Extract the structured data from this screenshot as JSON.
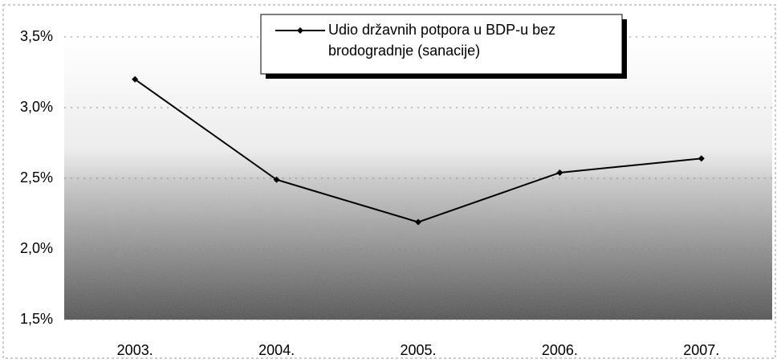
{
  "chart_data": {
    "type": "line",
    "categories": [
      "2003.",
      "2004.",
      "2005.",
      "2006.",
      "2007."
    ],
    "series": [
      {
        "name": "Udio državnih potpora u BDP-u bez brodogradnje (sanacije)",
        "color": "#000000",
        "values": [
          3.2,
          2.49,
          2.19,
          2.54,
          2.64
        ]
      }
    ],
    "ylim": [
      1.5,
      3.5
    ],
    "yticks": [
      {
        "value": 1.5,
        "label": "1,5%"
      },
      {
        "value": 2.0,
        "label": "2,0%"
      },
      {
        "value": 2.5,
        "label": "2,5%"
      },
      {
        "value": 3.0,
        "label": "3,0%"
      },
      {
        "value": 3.5,
        "label": "3,5%"
      }
    ],
    "grid": true,
    "legend": "top"
  }
}
